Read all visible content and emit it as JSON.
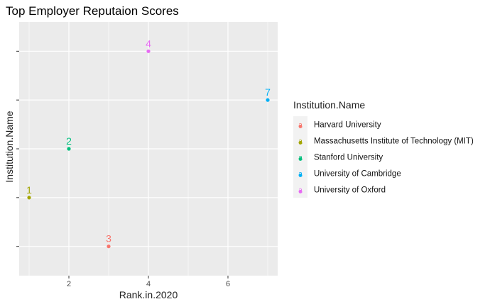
{
  "chart_data": {
    "type": "scatter",
    "title": "Top Employer Reputaion Scores",
    "xlabel": "Rank.in.2020",
    "ylabel": "Institution.Name",
    "x_ticks": [
      2,
      4,
      6
    ],
    "xlim": [
      0.75,
      7.25
    ],
    "grid": true,
    "legend": {
      "title": "Institution.Name",
      "placement": "right",
      "key_glyph": "a"
    },
    "series": [
      {
        "name": "Harvard University",
        "color": "#F8766D",
        "points": [
          {
            "x": 3,
            "y": 1,
            "label": "3"
          }
        ]
      },
      {
        "name": "Massachusetts Institute of Technology (MIT)",
        "color": "#A3A500",
        "points": [
          {
            "x": 1,
            "y": 2,
            "label": "1"
          }
        ]
      },
      {
        "name": "Stanford University",
        "color": "#00BF7D",
        "points": [
          {
            "x": 2,
            "y": 3,
            "label": "2"
          }
        ]
      },
      {
        "name": "University of Cambridge",
        "color": "#00B0F6",
        "points": [
          {
            "x": 7,
            "y": 4,
            "label": "7"
          }
        ]
      },
      {
        "name": "University of Oxford",
        "color": "#E76BF3",
        "points": [
          {
            "x": 4,
            "y": 5,
            "label": "4"
          }
        ]
      }
    ],
    "y_categories": [
      "Harvard University",
      "Massachusetts Institute of Technology (MIT)",
      "Stanford University",
      "University of Cambridge",
      "University of Oxford"
    ],
    "ylim": [
      0.4,
      5.6
    ],
    "panel_background": "#EBEBEB",
    "gridline_color": "#FFFFFF"
  }
}
